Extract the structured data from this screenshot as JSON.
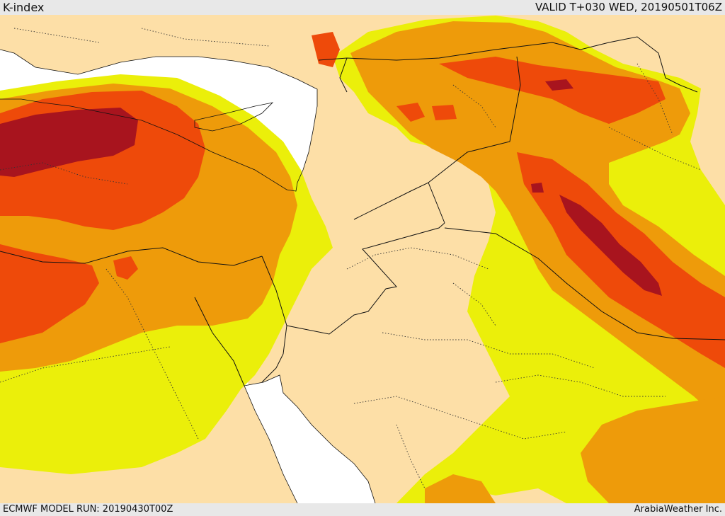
{
  "header": {
    "title": "K-index",
    "valid_label": "VALID T+030 WED, 20190501T06Z"
  },
  "footer": {
    "model_run": "ECMWF MODEL RUN: 20190430T00Z",
    "credit": "ArabiaWeather Inc."
  },
  "colors": {
    "land_background": "#fddfa7",
    "sea": "#ffffff",
    "k_low": "#ebef0a",
    "k_mid": "#ee9b0a",
    "k_high": "#ee4a0a",
    "k_extreme": "#a8141e",
    "border_line": "#111111",
    "internal_border": "#333333"
  }
}
